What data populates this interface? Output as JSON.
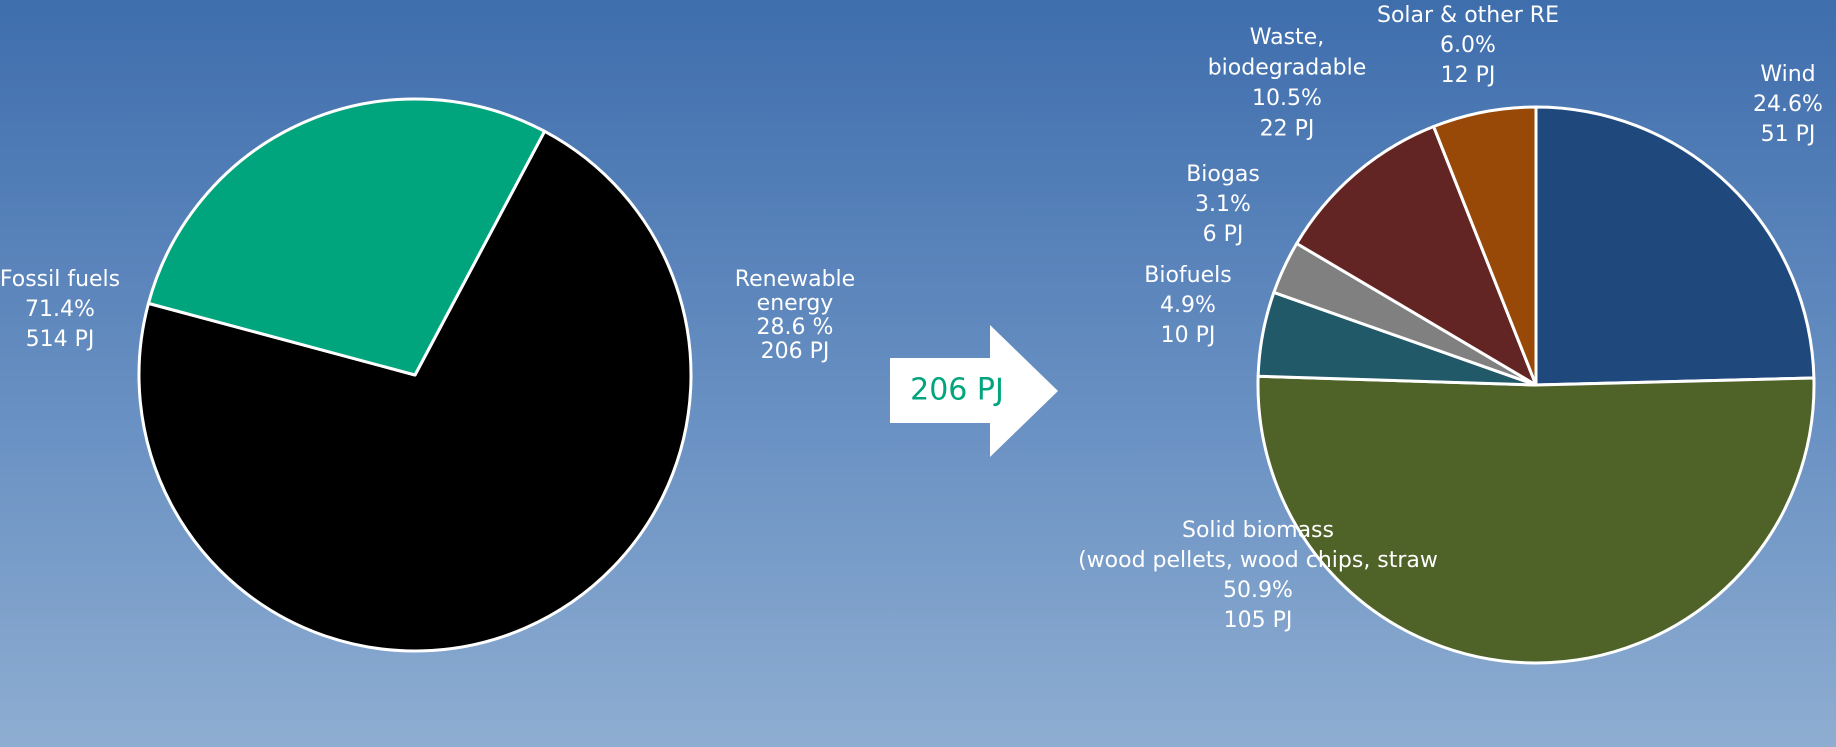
{
  "chart_data": [
    {
      "type": "pie",
      "categories": [
        [
          "Fossil fuels"
        ],
        [
          "Renewable",
          "energy"
        ]
      ],
      "values": [
        71.4,
        28.6
      ],
      "value_labels": [
        "71.4%",
        "28.6 %"
      ],
      "amounts": [
        514,
        206
      ],
      "amount_labels": [
        "514 PJ",
        "206 PJ"
      ],
      "colors": [
        "#000000",
        "#00a57e"
      ],
      "annotation": "206 PJ"
    },
    {
      "type": "pie",
      "categories": [
        [
          "Wind"
        ],
        [
          "Solid biomass",
          "(wood pellets, wood chips, straw"
        ],
        [
          "Biofuels"
        ],
        [
          "Biogas"
        ],
        [
          "Waste,",
          "biodegradable"
        ],
        [
          "Solar & other RE"
        ]
      ],
      "values": [
        24.6,
        50.9,
        4.9,
        3.1,
        10.5,
        6.0
      ],
      "value_labels": [
        "24.6%",
        "50.9%",
        "4.9%",
        "3.1%",
        "10.5%",
        "6.0%"
      ],
      "amounts": [
        51,
        105,
        10,
        6,
        22,
        12
      ],
      "amount_labels": [
        "51 PJ",
        "105 PJ",
        "10 PJ",
        "6 PJ",
        "22 PJ",
        "12 PJ"
      ],
      "colors": [
        "#1f497d",
        "#4f6228",
        "#215968",
        "#808080",
        "#632523",
        "#984807"
      ]
    }
  ]
}
